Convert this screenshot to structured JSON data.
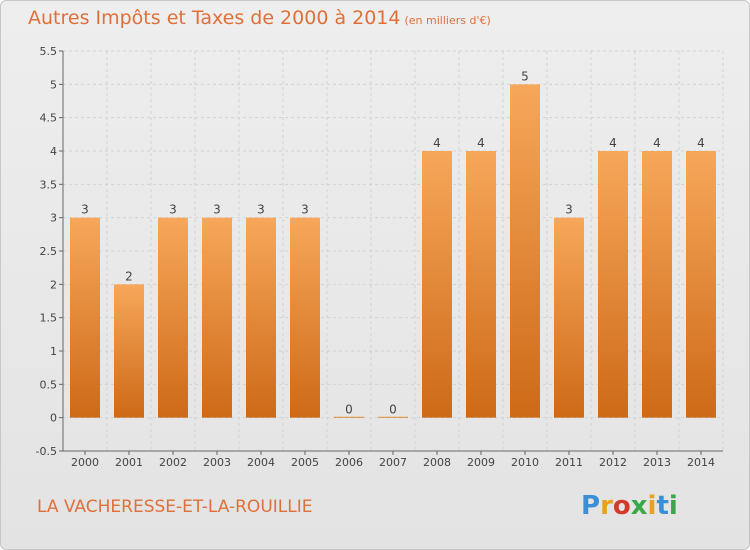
{
  "chart_data": {
    "type": "bar",
    "title": "Autres Impôts et Taxes de 2000 à 2014",
    "subtitle": "(en milliers d'€)",
    "categories": [
      "2000",
      "2001",
      "2002",
      "2003",
      "2004",
      "2005",
      "2006",
      "2007",
      "2008",
      "2009",
      "2010",
      "2011",
      "2012",
      "2013",
      "2014"
    ],
    "values": [
      3,
      2,
      3,
      3,
      3,
      3,
      0,
      0,
      4,
      4,
      5,
      3,
      4,
      4,
      4
    ],
    "value_labels": [
      "3",
      "2",
      "3",
      "3",
      "3",
      "3",
      "0",
      "0",
      "4",
      "4",
      "5",
      "3",
      "4",
      "4",
      "4"
    ],
    "ylim": [
      -0.5,
      5.5
    ],
    "yticks": [
      -0.5,
      0,
      0.5,
      1,
      1.5,
      2,
      2.5,
      3,
      3.5,
      4,
      4.5,
      5,
      5.5
    ],
    "ytick_labels": [
      "-0.5",
      "0",
      "0.5",
      "1",
      "1.5",
      "2",
      "2.5",
      "3",
      "3.5",
      "4",
      "4.5",
      "5",
      "5.5"
    ],
    "grid": true,
    "bar_color": "#f0923a",
    "xlabel": "",
    "ylabel": ""
  },
  "footer": {
    "commune": "LA VACHERESSE-ET-LA-ROUILLIE",
    "logo_letters": [
      "P",
      "r",
      "o",
      "x",
      "i",
      "t",
      "i"
    ],
    "logo_colors": [
      "#3b8fd4",
      "#e8a020",
      "#d13b2c",
      "#3aa84a",
      "#e8a020",
      "#3b8fd4",
      "#3aa84a"
    ]
  }
}
